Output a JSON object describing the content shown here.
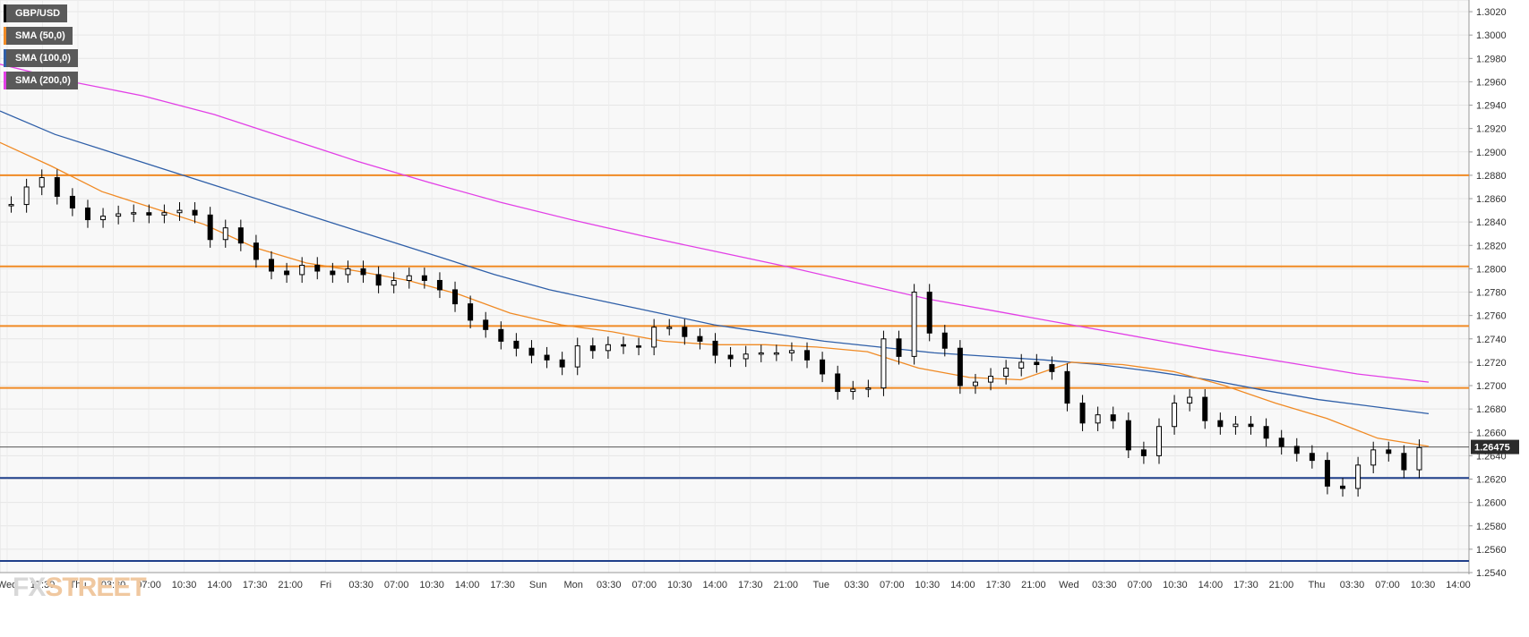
{
  "chart_data": {
    "type": "candlestick",
    "symbol": "GBP/USD",
    "legend": [
      {
        "label": "GBP/USD",
        "color": "#000000"
      },
      {
        "label": "SMA (50,0)",
        "color": "#f08a24"
      },
      {
        "label": "SMA (100,0)",
        "color": "#2f5fa8"
      },
      {
        "label": "SMA (200,0)",
        "color": "#e23fe6"
      }
    ],
    "ylim": [
      1.254,
      1.303
    ],
    "y_ticks": [
      "1.3020",
      "1.3000",
      "1.2980",
      "1.2960",
      "1.2940",
      "1.2920",
      "1.2900",
      "1.2880",
      "1.2860",
      "1.2840",
      "1.2820",
      "1.2800",
      "1.2780",
      "1.2760",
      "1.2740",
      "1.2720",
      "1.2700",
      "1.2680",
      "1.2660",
      "1.2640",
      "1.2620",
      "1.2600",
      "1.2580",
      "1.2560",
      "1.2540"
    ],
    "x_ticks": [
      "Wed",
      "17:30",
      "Thu",
      "03:30",
      "07:00",
      "10:30",
      "14:00",
      "17:30",
      "21:00",
      "Fri",
      "03:30",
      "07:00",
      "10:30",
      "14:00",
      "17:30",
      "Sun",
      "Mon",
      "03:30",
      "07:00",
      "10:30",
      "14:00",
      "17:30",
      "21:00",
      "Tue",
      "03:30",
      "07:00",
      "10:30",
      "14:00",
      "17:30",
      "21:00",
      "Wed",
      "03:30",
      "07:00",
      "10:30",
      "14:00",
      "17:30",
      "21:00",
      "Thu",
      "03:30",
      "07:00",
      "10:30",
      "14:00"
    ],
    "last_price": "1.26475",
    "horizontal_levels": [
      {
        "value": 1.288,
        "color": "#f08a24"
      },
      {
        "value": 1.2802,
        "color": "#f08a24"
      },
      {
        "value": 1.2751,
        "color": "#f08a24"
      },
      {
        "value": 1.2698,
        "color": "#f08a24"
      },
      {
        "value": 1.2621,
        "color": "#1f3f8a"
      },
      {
        "value": 1.255,
        "color": "#1f3f8a"
      }
    ],
    "sma50": [
      1.2908,
      1.2888,
      1.2866,
      1.2852,
      1.2838,
      1.2818,
      1.2805,
      1.2798,
      1.279,
      1.2778,
      1.2762,
      1.2752,
      1.2746,
      1.2738,
      1.2735,
      1.2735,
      1.2733,
      1.2729,
      1.2715,
      1.2707,
      1.2705,
      1.272,
      1.2718,
      1.2712,
      1.27,
      1.2685,
      1.2672,
      1.2655,
      1.2648
    ],
    "sma100": [
      1.2935,
      1.2915,
      1.29,
      1.2885,
      1.287,
      1.2855,
      1.284,
      1.2825,
      1.281,
      1.2795,
      1.2782,
      1.2772,
      1.2762,
      1.2752,
      1.2745,
      1.2738,
      1.2733,
      1.2728,
      1.2725,
      1.2722,
      1.2718,
      1.2712,
      1.2705,
      1.2696,
      1.2688,
      1.2682,
      1.2676
    ],
    "sma200": [
      1.2975,
      1.296,
      1.2948,
      1.2932,
      1.2912,
      1.2892,
      1.2874,
      1.2857,
      1.2842,
      1.2828,
      1.2815,
      1.2802,
      1.2788,
      1.2774,
      1.2763,
      1.2752,
      1.2741,
      1.273,
      1.272,
      1.271,
      1.2703
    ],
    "candles": [
      1.2855,
      1.287,
      1.2878,
      1.2862,
      1.2852,
      1.2842,
      1.2845,
      1.2847,
      1.2848,
      1.2846,
      1.2848,
      1.285,
      1.2846,
      1.2825,
      1.2835,
      1.2822,
      1.2808,
      1.2798,
      1.2795,
      1.2803,
      1.2798,
      1.2795,
      1.28,
      1.2795,
      1.2786,
      1.279,
      1.2794,
      1.279,
      1.2782,
      1.277,
      1.2756,
      1.2748,
      1.2738,
      1.2732,
      1.2726,
      1.2722,
      1.2716,
      1.2734,
      1.273,
      1.2735,
      1.2734,
      1.2733,
      1.275,
      1.275,
      1.2742,
      1.2738,
      1.2726,
      1.2723,
      1.2727,
      1.2728,
      1.2728,
      1.273,
      1.2722,
      1.271,
      1.2695,
      1.2697,
      1.2698,
      1.274,
      1.2725,
      1.278,
      1.2745,
      1.2732,
      1.27,
      1.2703,
      1.2708,
      1.2715,
      1.272,
      1.2718,
      1.2712,
      1.2685,
      1.2668,
      1.2675,
      1.267,
      1.2645,
      1.264,
      1.2665,
      1.2685,
      1.269,
      1.267,
      1.2665,
      1.2667,
      1.2665,
      1.2655,
      1.2648,
      1.2642,
      1.2636,
      1.2614,
      1.2612,
      1.2632,
      1.2645,
      1.2642,
      1.2628,
      1.2647
    ]
  },
  "watermark": {
    "fx": "FX",
    "street": "STREET"
  }
}
